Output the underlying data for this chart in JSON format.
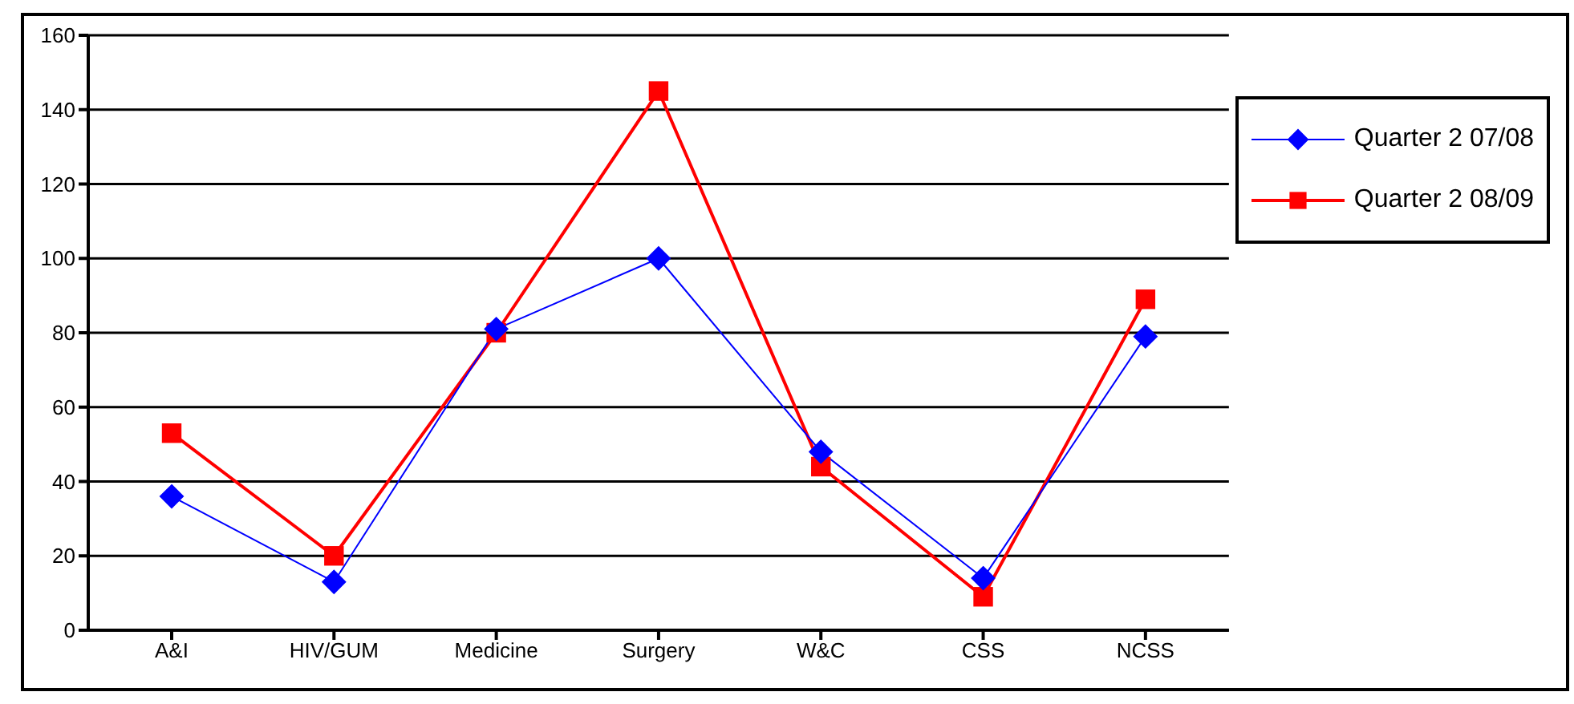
{
  "chart_data": {
    "type": "line",
    "categories": [
      "A&I",
      "HIV/GUM",
      "Medicine",
      "Surgery",
      "W&C",
      "CSS",
      "NCSS"
    ],
    "series": [
      {
        "name": "Quarter 2 07/08",
        "color": "#0000ff",
        "marker": "diamond",
        "values": [
          36,
          13,
          81,
          100,
          48,
          14,
          79
        ]
      },
      {
        "name": "Quarter 2 08/09",
        "color": "#ff0000",
        "marker": "square",
        "values": [
          53,
          20,
          80,
          145,
          44,
          9,
          89
        ]
      }
    ],
    "ylim": [
      0,
      160
    ],
    "yticks": [
      0,
      20,
      40,
      60,
      80,
      100,
      120,
      140,
      160
    ],
    "grid": "y",
    "legend": "top right"
  }
}
